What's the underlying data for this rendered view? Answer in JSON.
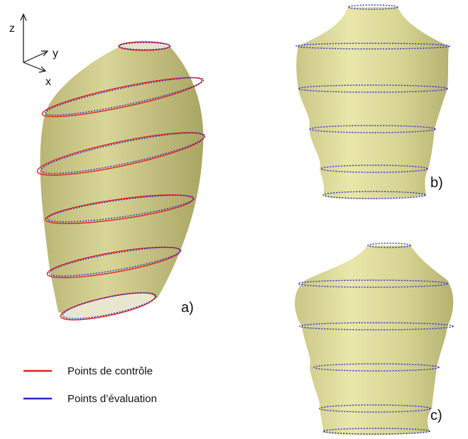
{
  "axes": {
    "z": "z",
    "y": "y",
    "x": "x"
  },
  "panels": [
    {
      "label": "a)"
    },
    {
      "label": "b)"
    },
    {
      "label": "c)"
    }
  ],
  "legend": [
    {
      "label": "Points de contrôle",
      "color": "#e02020"
    },
    {
      "label": "Points d’évaluation",
      "color": "#2828c8"
    }
  ]
}
